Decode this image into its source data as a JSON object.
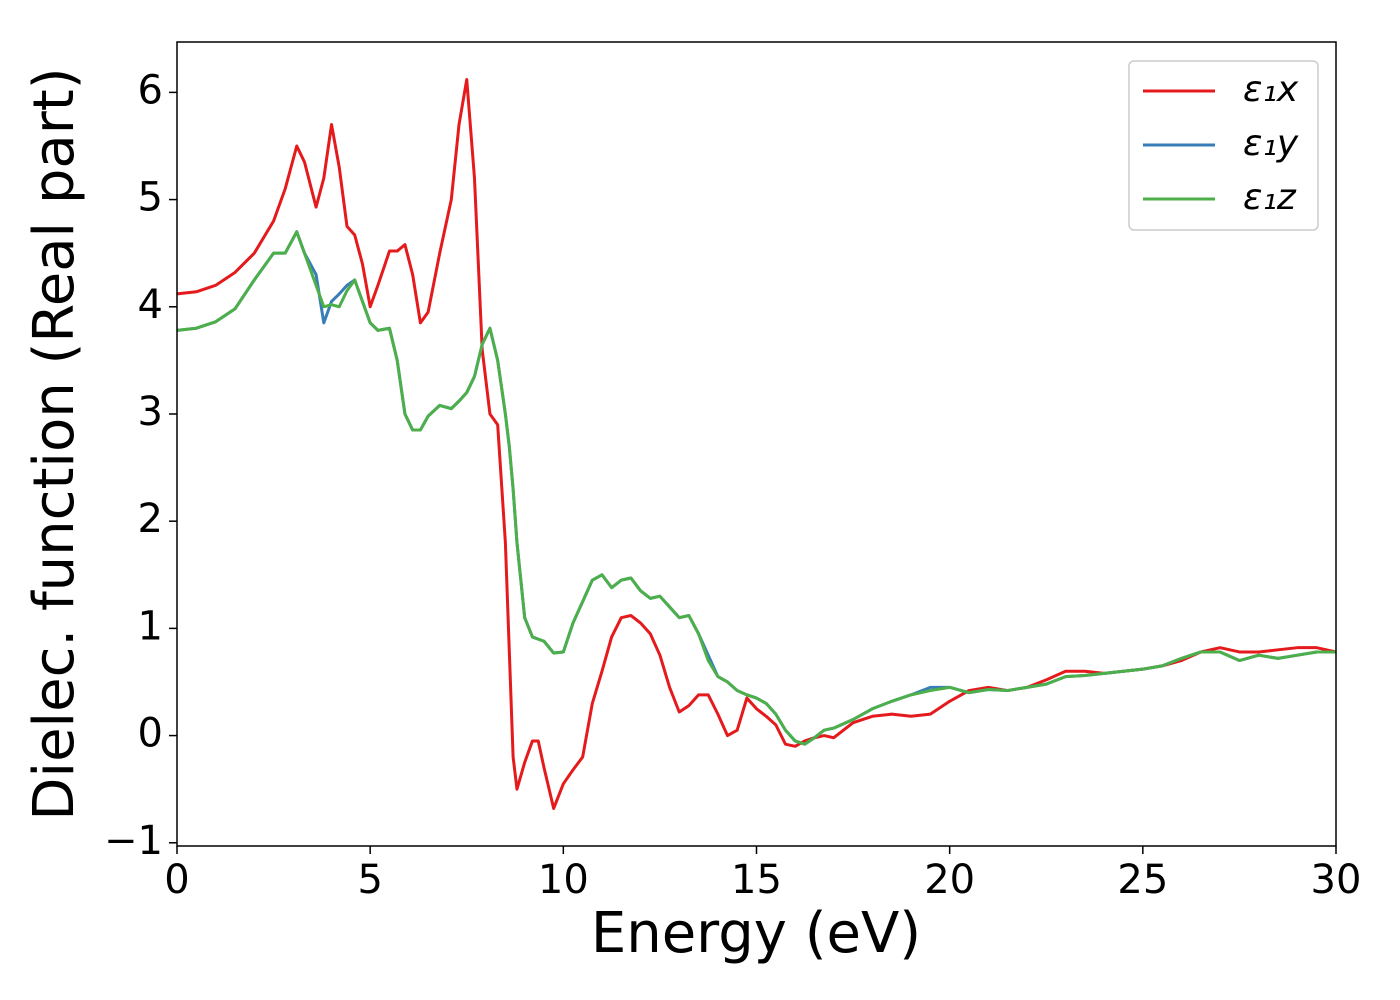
{
  "chart_data": {
    "type": "line",
    "xlabel": "Energy (eV)",
    "ylabel": "Dielec. function (Real part)",
    "x": [
      0,
      0.5,
      1.0,
      1.5,
      2.0,
      2.5,
      2.8,
      3.1,
      3.3,
      3.6,
      3.8,
      4.0,
      4.2,
      4.4,
      4.6,
      4.8,
      5.0,
      5.2,
      5.5,
      5.7,
      5.9,
      6.1,
      6.3,
      6.5,
      6.8,
      7.1,
      7.3,
      7.5,
      7.7,
      7.9,
      8.1,
      8.3,
      8.5,
      8.6,
      8.7,
      8.8,
      9.0,
      9.2,
      9.35,
      9.5,
      9.75,
      10.0,
      10.25,
      10.5,
      10.75,
      11.0,
      11.25,
      11.5,
      11.75,
      12.0,
      12.25,
      12.5,
      12.75,
      13.0,
      13.25,
      13.5,
      13.75,
      14.0,
      14.25,
      14.5,
      14.75,
      15.0,
      15.25,
      15.5,
      15.75,
      16.0,
      16.25,
      16.5,
      16.75,
      17.0,
      17.5,
      18.0,
      18.5,
      19.0,
      19.5,
      20.0,
      20.5,
      21.0,
      21.5,
      22.0,
      22.5,
      23.0,
      23.5,
      24.0,
      24.5,
      25.0,
      25.5,
      26.0,
      26.5,
      27.0,
      27.5,
      28.0,
      28.5,
      29.0,
      29.5,
      30.0
    ],
    "series": [
      {
        "name": "ε₁x",
        "color": "#e41a1c",
        "values": [
          4.12,
          4.14,
          4.2,
          4.32,
          4.5,
          4.8,
          5.1,
          5.5,
          5.35,
          4.93,
          5.2,
          5.7,
          5.3,
          4.75,
          4.67,
          4.4,
          4.0,
          4.2,
          4.52,
          4.52,
          4.58,
          4.3,
          3.85,
          3.95,
          4.5,
          5.0,
          5.7,
          6.12,
          5.2,
          3.6,
          3.0,
          2.9,
          1.8,
          0.8,
          -0.2,
          -0.5,
          -0.25,
          -0.05,
          -0.05,
          -0.3,
          -0.68,
          -0.45,
          -0.32,
          -0.2,
          0.3,
          0.6,
          0.92,
          1.1,
          1.12,
          1.05,
          0.95,
          0.75,
          0.45,
          0.22,
          0.28,
          0.38,
          0.38,
          0.2,
          0.0,
          0.05,
          0.35,
          0.25,
          0.18,
          0.1,
          -0.08,
          -0.1,
          -0.05,
          -0.02,
          0.0,
          -0.02,
          0.12,
          0.18,
          0.2,
          0.18,
          0.2,
          0.32,
          0.42,
          0.45,
          0.42,
          0.45,
          0.52,
          0.6,
          0.6,
          0.58,
          0.6,
          0.62,
          0.65,
          0.7,
          0.78,
          0.82,
          0.78,
          0.78,
          0.8,
          0.82,
          0.82,
          0.78
        ]
      },
      {
        "name": "ε₁y",
        "color": "#377eb8",
        "values": [
          3.78,
          3.8,
          3.86,
          3.98,
          4.25,
          4.5,
          4.5,
          4.7,
          4.5,
          4.3,
          3.85,
          4.05,
          4.12,
          4.2,
          4.25,
          4.05,
          3.85,
          3.78,
          3.8,
          3.5,
          3.0,
          2.85,
          2.85,
          2.98,
          3.08,
          3.05,
          3.12,
          3.2,
          3.35,
          3.65,
          3.8,
          3.5,
          3.0,
          2.7,
          2.3,
          1.8,
          1.1,
          0.92,
          0.9,
          0.88,
          0.77,
          0.78,
          1.05,
          1.25,
          1.45,
          1.5,
          1.38,
          1.45,
          1.47,
          1.35,
          1.28,
          1.3,
          1.2,
          1.1,
          1.12,
          0.95,
          0.75,
          0.55,
          0.5,
          0.42,
          0.38,
          0.35,
          0.3,
          0.2,
          0.05,
          -0.05,
          -0.08,
          -0.02,
          0.05,
          0.07,
          0.15,
          0.25,
          0.32,
          0.38,
          0.45,
          0.45,
          0.4,
          0.43,
          0.42,
          0.45,
          0.48,
          0.55,
          0.56,
          0.58,
          0.6,
          0.62,
          0.65,
          0.72,
          0.78,
          0.78,
          0.7,
          0.75,
          0.72,
          0.75,
          0.78,
          0.78
        ]
      },
      {
        "name": "ε₁z",
        "color": "#4daf4a",
        "values": [
          3.78,
          3.8,
          3.86,
          3.98,
          4.25,
          4.5,
          4.5,
          4.7,
          4.5,
          4.2,
          4.0,
          4.02,
          4.0,
          4.15,
          4.25,
          4.05,
          3.85,
          3.78,
          3.8,
          3.5,
          3.0,
          2.85,
          2.85,
          2.98,
          3.08,
          3.05,
          3.12,
          3.2,
          3.35,
          3.65,
          3.8,
          3.5,
          3.0,
          2.7,
          2.3,
          1.8,
          1.1,
          0.92,
          0.9,
          0.88,
          0.77,
          0.78,
          1.05,
          1.25,
          1.45,
          1.5,
          1.38,
          1.45,
          1.47,
          1.35,
          1.28,
          1.3,
          1.2,
          1.1,
          1.12,
          0.95,
          0.7,
          0.55,
          0.5,
          0.42,
          0.38,
          0.35,
          0.3,
          0.2,
          0.05,
          -0.05,
          -0.08,
          -0.02,
          0.05,
          0.07,
          0.15,
          0.25,
          0.32,
          0.38,
          0.42,
          0.45,
          0.4,
          0.43,
          0.42,
          0.45,
          0.48,
          0.55,
          0.56,
          0.58,
          0.6,
          0.62,
          0.65,
          0.72,
          0.78,
          0.78,
          0.7,
          0.75,
          0.72,
          0.75,
          0.78,
          0.78
        ]
      }
    ],
    "xlim": [
      0,
      30
    ],
    "xticks": [
      0,
      5,
      10,
      15,
      20,
      25,
      30
    ],
    "ylim": [
      -1.03,
      6.47
    ],
    "yticks": [
      {
        "value": -1,
        "label": "−1"
      },
      0,
      1,
      2,
      3,
      4,
      5,
      6
    ],
    "grid": false,
    "legend": "upper right"
  }
}
